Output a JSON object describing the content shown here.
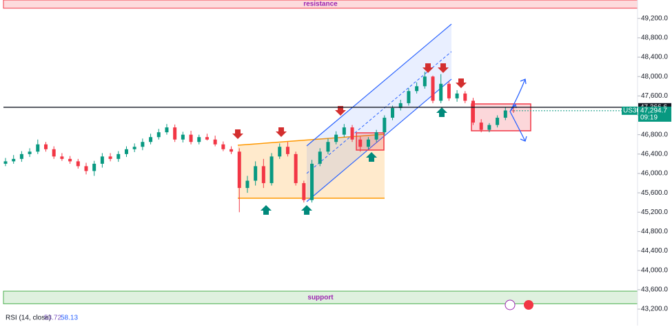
{
  "chart_data": {
    "type": "candlestick",
    "series": {
      "name": "US30",
      "up_color": "#089981",
      "down_color": "#f23645",
      "open": [
        46200,
        46250,
        46300,
        46400,
        46450,
        46600,
        46500,
        46350,
        46300,
        46250,
        46150,
        46050,
        46200,
        46350,
        46300,
        46400,
        46500,
        46550,
        46650,
        46750,
        46850,
        46950,
        46700,
        46800,
        46650,
        46750,
        46700,
        46600,
        46500,
        46450,
        45700,
        45850,
        46150,
        45800,
        46350,
        46550,
        46400,
        45800,
        45450,
        46200,
        46450,
        46650,
        46800,
        46950,
        46700,
        46550,
        46700,
        46850,
        47150,
        47350,
        47450,
        47700,
        47800,
        48000,
        47500,
        47850,
        47550,
        47650,
        47500,
        47050,
        46900,
        47000,
        47150,
        47300
      ],
      "high": [
        46320,
        46380,
        46460,
        46520,
        46700,
        46650,
        46560,
        46420,
        46360,
        46300,
        46220,
        46260,
        46420,
        46420,
        46460,
        46560,
        46620,
        46720,
        46820,
        46920,
        47020,
        47010,
        46860,
        46880,
        46800,
        46820,
        46780,
        46660,
        46560,
        46520,
        45950,
        46250,
        46300,
        46420,
        46620,
        46650,
        46450,
        45850,
        46280,
        46520,
        46720,
        46870,
        47020,
        47000,
        46760,
        46750,
        46900,
        47200,
        47400,
        47520,
        47760,
        47880,
        48100,
        48020,
        48050,
        47900,
        47720,
        47700,
        47560,
        47120,
        47040,
        47200,
        47360,
        47380
      ],
      "low": [
        46150,
        46200,
        46240,
        46340,
        46400,
        46450,
        46300,
        46260,
        46200,
        46100,
        45980,
        45950,
        46120,
        46250,
        46240,
        46340,
        46440,
        46480,
        46600,
        46700,
        46800,
        46650,
        46640,
        46600,
        46600,
        46680,
        46560,
        46460,
        46400,
        45200,
        45600,
        45750,
        45700,
        45750,
        46300,
        46350,
        45750,
        45400,
        45400,
        46150,
        46400,
        46600,
        46750,
        46650,
        46450,
        46500,
        46650,
        46800,
        47100,
        47300,
        47400,
        47650,
        47750,
        47450,
        47450,
        47500,
        47480,
        47450,
        47000,
        46850,
        46850,
        46950,
        47100,
        47250
      ],
      "close": [
        46250,
        46300,
        46400,
        46450,
        46600,
        46500,
        46350,
        46300,
        46250,
        46150,
        46050,
        46200,
        46350,
        46300,
        46400,
        46500,
        46550,
        46650,
        46750,
        46850,
        46950,
        46700,
        46800,
        46650,
        46750,
        46700,
        46600,
        46500,
        46450,
        45700,
        45850,
        46150,
        45800,
        46350,
        46550,
        46400,
        45800,
        45450,
        46200,
        46450,
        46650,
        46800,
        46950,
        46700,
        46550,
        46700,
        46850,
        47150,
        47350,
        47450,
        47700,
        47800,
        48000,
        47500,
        47850,
        47550,
        47650,
        47500,
        47050,
        46900,
        47000,
        47150,
        47300,
        47294.7
      ]
    },
    "ylim": [
      42860,
      49580
    ],
    "yticks": [
      {
        "value": 43200,
        "label": "43,200.0"
      },
      {
        "value": 43600,
        "label": "43,600.0"
      },
      {
        "value": 44000,
        "label": "44,000.0"
      },
      {
        "value": 44400,
        "label": "44,400.0"
      },
      {
        "value": 44800,
        "label": "44,800.0"
      },
      {
        "value": 45200,
        "label": "45,200.0"
      },
      {
        "value": 45600,
        "label": "45,600.0"
      },
      {
        "value": 46000,
        "label": "46,000.0"
      },
      {
        "value": 46400,
        "label": "46,400.0"
      },
      {
        "value": 46800,
        "label": "46,800.0"
      },
      {
        "value": 47200,
        "label": "47,200.0"
      },
      {
        "value": 47600,
        "label": "47,600.0"
      },
      {
        "value": 48000,
        "label": "48,000.0"
      },
      {
        "value": 48400,
        "label": "48,400.0"
      },
      {
        "value": 48800,
        "label": "48,800.0"
      },
      {
        "value": 49200,
        "label": "49,200.0"
      }
    ],
    "reference_line": {
      "value": 47366.6,
      "label": "47,366.6"
    },
    "last_price": {
      "value": 47294.7,
      "label": "47,294.7",
      "time": "09:19"
    },
    "zones": [
      {
        "label": "resistance",
        "range": [
          49410,
          49580
        ]
      },
      {
        "label": "support",
        "range": [
          43310,
          43570
        ]
      }
    ],
    "indicator": {
      "label": "RSI (14, close)",
      "values": [
        53.72,
        58.13
      ]
    }
  }
}
